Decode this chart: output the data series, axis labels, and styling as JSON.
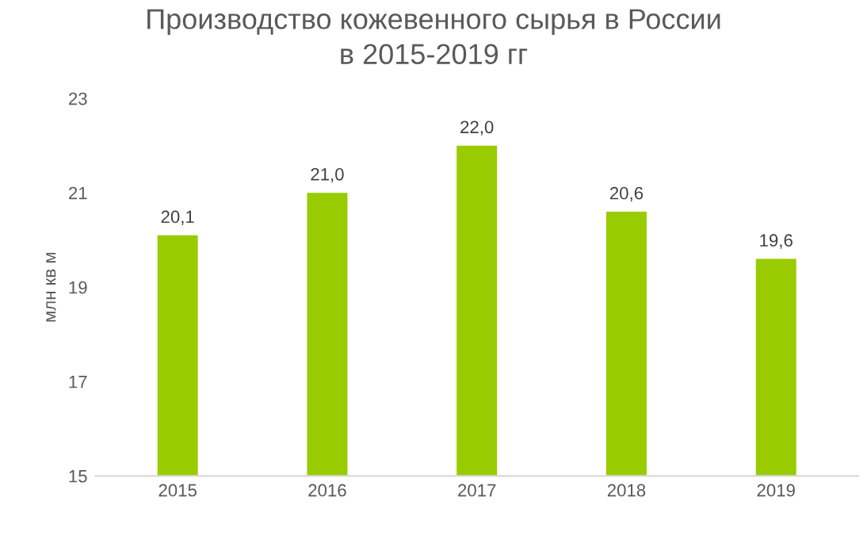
{
  "chart_data": {
    "type": "bar",
    "title": "Производство кожевенного сырья в России\nв 2015-2019 гг",
    "ylabel": "млн кв м",
    "categories": [
      "2015",
      "2016",
      "2017",
      "2018",
      "2019"
    ],
    "values": [
      20.1,
      21.0,
      22.0,
      20.6,
      19.6
    ],
    "value_labels": [
      "20,1",
      "21,0",
      "22,0",
      "20,6",
      "19,6"
    ],
    "color": "#99cc00",
    "ylim": [
      15,
      23
    ],
    "yticks": [
      15,
      17,
      19,
      21,
      23
    ],
    "grid": false,
    "legend": false
  }
}
